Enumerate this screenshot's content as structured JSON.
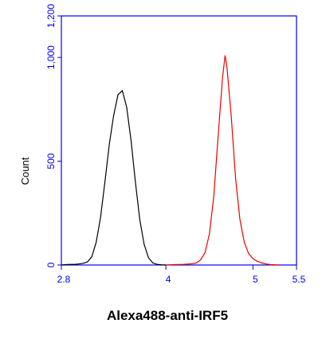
{
  "chart_data": {
    "type": "line",
    "xlabel": "Alexa488-anti-IRF5",
    "ylabel": "Count",
    "xlim": [
      2.8,
      5.5
    ],
    "xticks": [
      2.8,
      4,
      5,
      5.5
    ],
    "ylim": [
      0,
      1200
    ],
    "yticks": [
      0,
      500,
      {
        "value": 1000,
        "label": "1,000"
      },
      {
        "value": 1200,
        "label": "1,200"
      }
    ],
    "axis_color": "#0000ee",
    "series": [
      {
        "color": "#000000",
        "x": [
          2.8,
          2.85,
          2.9,
          2.95,
          3.0,
          3.05,
          3.1,
          3.15,
          3.2,
          3.25,
          3.3,
          3.35,
          3.4,
          3.45,
          3.5,
          3.55,
          3.6,
          3.65,
          3.7,
          3.75,
          3.8,
          3.85,
          3.9,
          3.95,
          4.0
        ],
        "values": [
          0,
          2,
          3,
          3,
          5,
          8,
          15,
          40,
          110,
          230,
          400,
          580,
          720,
          820,
          840,
          760,
          600,
          400,
          220,
          100,
          35,
          10,
          3,
          1,
          0
        ]
      },
      {
        "color": "#ee0000",
        "x": [
          4.0,
          4.1,
          4.2,
          4.3,
          4.35,
          4.4,
          4.45,
          4.5,
          4.55,
          4.6,
          4.65,
          4.68,
          4.7,
          4.75,
          4.8,
          4.85,
          4.9,
          4.95,
          5.0,
          5.05,
          5.1,
          5.15,
          5.2,
          5.3
        ],
        "values": [
          0,
          2,
          3,
          6,
          10,
          25,
          60,
          150,
          330,
          620,
          900,
          1010,
          960,
          720,
          420,
          220,
          110,
          55,
          30,
          18,
          10,
          5,
          2,
          0
        ]
      }
    ]
  }
}
